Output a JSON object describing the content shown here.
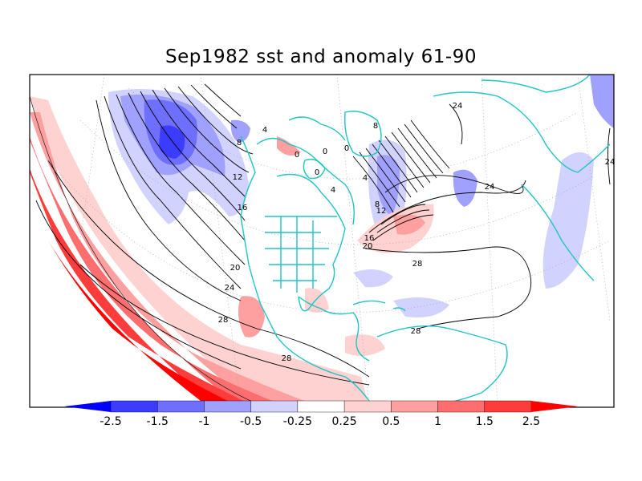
{
  "title": "Sep1982 sst and anomaly 61-90",
  "colorbar": {
    "labels": [
      "-2.5",
      "-1.5",
      "-1",
      "-0.5",
      "-0.25",
      "0.25",
      "0.5",
      "1",
      "1.5",
      "2.5"
    ],
    "colors": [
      "#0000ff",
      "#3c3cff",
      "#6e6eff",
      "#a0a0ff",
      "#d2d2ff",
      "#ffffff",
      "#ffd2d2",
      "#ffa0a0",
      "#ff6e6e",
      "#ff3c3c",
      "#ff0000"
    ]
  },
  "contour_labels": [
    "0",
    "0",
    "0",
    "0",
    "4",
    "4",
    "4",
    "8",
    "8",
    "8",
    "12",
    "12",
    "16",
    "16",
    "20",
    "20",
    "24",
    "24",
    "24",
    "24",
    "28",
    "28",
    "28",
    "28"
  ],
  "colors": {
    "coast": "#20c4c4",
    "frame": "#000000"
  }
}
